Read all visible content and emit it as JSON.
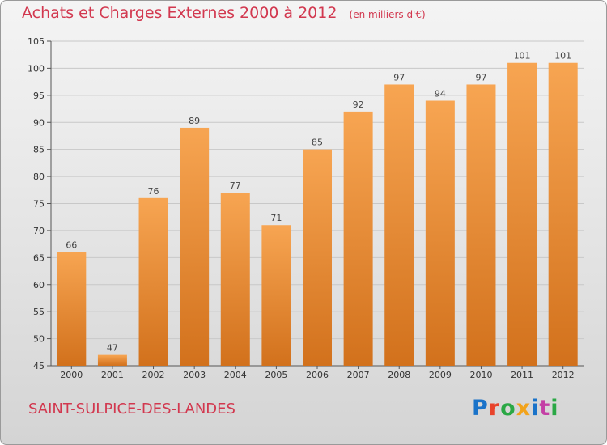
{
  "header": {
    "title": "Achats et Charges Externes 2000 à 2012",
    "unit": "(en milliers d'€)"
  },
  "footer": {
    "location": "SAINT-SULPICE-DES-LANDES",
    "brand": "Proxiti",
    "brand_colors": [
      "#1a73c9",
      "#e8432b",
      "#2aa845",
      "#f2a31b",
      "#1a73c9",
      "#c43fa5",
      "#2aa845"
    ]
  },
  "colors": {
    "bar_top": "#f7a552",
    "bar_bottom": "#d2711c",
    "title": "#d2384f",
    "grid": "#c8c8c8"
  },
  "chart_data": {
    "type": "bar",
    "title": "Achats et Charges Externes 2000 à 2012",
    "subtitle": "(en milliers d'€)",
    "categories": [
      "2000",
      "2001",
      "2002",
      "2003",
      "2004",
      "2005",
      "2006",
      "2007",
      "2008",
      "2009",
      "2010",
      "2011",
      "2012"
    ],
    "values": [
      66,
      47,
      76,
      89,
      77,
      71,
      85,
      92,
      97,
      94,
      97,
      101,
      101
    ],
    "ylim": [
      45,
      105
    ],
    "yticks": [
      45,
      50,
      55,
      60,
      65,
      70,
      75,
      80,
      85,
      90,
      95,
      100,
      105
    ],
    "grid": true,
    "data_labels": true
  }
}
